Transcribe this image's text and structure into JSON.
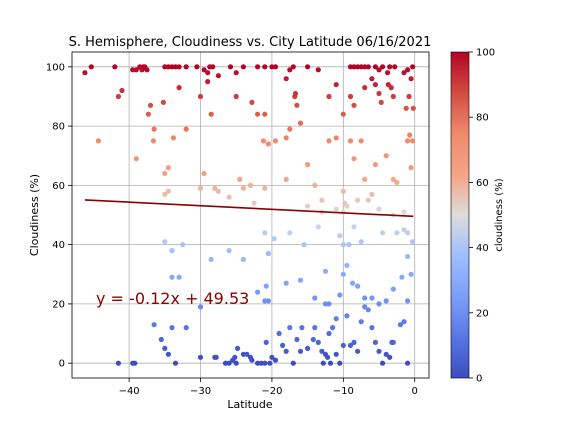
{
  "chart_data": {
    "type": "scatter",
    "title": "S. Hemisphere, Cloudiness vs. City Latitude  06/16/2021",
    "xlabel": "Latitude",
    "ylabel": "Cloudiness (%)",
    "xlim": [
      -48,
      2
    ],
    "ylim": [
      -5,
      105
    ],
    "xticks": [
      -40,
      -30,
      -20,
      -10,
      0
    ],
    "yticks": [
      0,
      20,
      40,
      60,
      80,
      100
    ],
    "grid": true,
    "colormap": "coolwarm",
    "colorbar": {
      "label": "cloudiness (%)",
      "range": [
        0,
        100
      ],
      "ticks": [
        0,
        20,
        40,
        60,
        80,
        100
      ]
    },
    "regression": {
      "slope": -0.12,
      "intercept": 49.53,
      "equation": "y = -0.12x + 49.53",
      "line_color": "#8b0000",
      "text_color": "#8b0000"
    },
    "points": [
      [
        -46.2,
        98
      ],
      [
        -45.3,
        100
      ],
      [
        -42,
        100
      ],
      [
        -41.5,
        90
      ],
      [
        -41,
        92
      ],
      [
        -39.5,
        99
      ],
      [
        -39,
        99
      ],
      [
        -38.5,
        100
      ],
      [
        -38.2,
        99
      ],
      [
        -38,
        100
      ],
      [
        -37.8,
        100
      ],
      [
        -37.5,
        99
      ],
      [
        -37,
        87
      ],
      [
        -37.3,
        84
      ],
      [
        -36.5,
        79
      ],
      [
        -36.6,
        75
      ],
      [
        -35,
        100
      ],
      [
        -34.5,
        100
      ],
      [
        -34,
        100
      ],
      [
        -33.5,
        100
      ],
      [
        -33,
        100
      ],
      [
        -32,
        100
      ],
      [
        -30.5,
        100
      ],
      [
        -29.5,
        99
      ],
      [
        -29,
        98
      ],
      [
        -28.7,
        100
      ],
      [
        -28.3,
        100
      ],
      [
        -27.5,
        97
      ],
      [
        -25.8,
        100
      ],
      [
        -25,
        98
      ],
      [
        -24,
        100
      ],
      [
        -22,
        100
      ],
      [
        -21,
        100
      ],
      [
        -20,
        100
      ],
      [
        -19.5,
        100
      ],
      [
        -18,
        96
      ],
      [
        -17.5,
        99
      ],
      [
        -17,
        100
      ],
      [
        -15,
        100
      ],
      [
        -13.5,
        99
      ],
      [
        -9,
        100
      ],
      [
        -8.5,
        100
      ],
      [
        -8,
        100
      ],
      [
        -7.5,
        100
      ],
      [
        -7,
        100
      ],
      [
        -6.5,
        100
      ],
      [
        -5.5,
        100
      ],
      [
        -5,
        99
      ],
      [
        -4.5,
        100
      ],
      [
        -3.8,
        98
      ],
      [
        -3.5,
        100
      ],
      [
        -2.8,
        100
      ],
      [
        -1.5,
        98
      ],
      [
        -1,
        99
      ],
      [
        -0.5,
        96
      ],
      [
        -0.3,
        100
      ],
      [
        -35.2,
        88
      ],
      [
        -33,
        93
      ],
      [
        -30,
        90
      ],
      [
        -29,
        95
      ],
      [
        -28.5,
        84
      ],
      [
        -25,
        90
      ],
      [
        -22.8,
        88
      ],
      [
        -22,
        84
      ],
      [
        -21,
        84
      ],
      [
        -16.5,
        87
      ],
      [
        -16.8,
        90
      ],
      [
        -16.7,
        91
      ],
      [
        -12,
        90
      ],
      [
        -11,
        94
      ],
      [
        -10,
        84
      ],
      [
        -9,
        90
      ],
      [
        -8.5,
        87
      ],
      [
        -7,
        93
      ],
      [
        -6,
        96
      ],
      [
        -5.5,
        94
      ],
      [
        -5,
        91
      ],
      [
        -4.7,
        88
      ],
      [
        -3.7,
        94
      ],
      [
        -3.3,
        93
      ],
      [
        -3,
        90
      ],
      [
        -1.2,
        86
      ],
      [
        -0.8,
        90
      ],
      [
        -0.2,
        86
      ],
      [
        -44.3,
        75
      ],
      [
        -39,
        69
      ],
      [
        -35,
        64
      ],
      [
        -34.5,
        66
      ],
      [
        -33.8,
        76
      ],
      [
        -32,
        79
      ],
      [
        -29.5,
        64
      ],
      [
        -28,
        59
      ],
      [
        -27.5,
        58
      ],
      [
        -24.5,
        62
      ],
      [
        -23,
        60
      ],
      [
        -21.2,
        75
      ],
      [
        -20.5,
        74
      ],
      [
        -19.5,
        75
      ],
      [
        -18,
        76
      ],
      [
        -17.5,
        79
      ],
      [
        -16,
        81
      ],
      [
        -15,
        67
      ],
      [
        -14,
        60
      ],
      [
        -13,
        55
      ],
      [
        -12,
        75
      ],
      [
        -11,
        76
      ],
      [
        -10,
        58
      ],
      [
        -9.8,
        54
      ],
      [
        -9,
        75
      ],
      [
        -8.5,
        69
      ],
      [
        -7.5,
        75
      ],
      [
        -7,
        62
      ],
      [
        -6,
        57
      ],
      [
        -5.5,
        67
      ],
      [
        -4,
        70
      ],
      [
        -3,
        62
      ],
      [
        -2.5,
        61
      ],
      [
        -1.5,
        51
      ],
      [
        -1,
        75
      ],
      [
        -0.7,
        77
      ],
      [
        -0.5,
        66
      ],
      [
        -0.3,
        75
      ],
      [
        -35,
        57
      ],
      [
        -34.5,
        58
      ],
      [
        -30,
        59
      ],
      [
        -26,
        56
      ],
      [
        -24,
        59
      ],
      [
        -22.5,
        54
      ],
      [
        -21,
        59
      ],
      [
        -18,
        62
      ],
      [
        -15,
        53
      ],
      [
        -13,
        51
      ],
      [
        -11,
        52
      ],
      [
        -10,
        51
      ],
      [
        -9.5,
        53
      ],
      [
        -8,
        55
      ],
      [
        -6.5,
        55
      ],
      [
        -5,
        52
      ],
      [
        -3,
        50
      ],
      [
        -1,
        44
      ],
      [
        -35,
        41
      ],
      [
        -34,
        38
      ],
      [
        -32.5,
        40
      ],
      [
        -28.5,
        35
      ],
      [
        -26,
        38
      ],
      [
        -21,
        44
      ],
      [
        -20.5,
        37
      ],
      [
        -19.7,
        42
      ],
      [
        -17.5,
        44
      ],
      [
        -15.5,
        40
      ],
      [
        -13.5,
        46
      ],
      [
        -10.5,
        43
      ],
      [
        -10,
        40
      ],
      [
        -9.2,
        40
      ],
      [
        -8.5,
        46
      ],
      [
        -7.5,
        41
      ],
      [
        -4.5,
        44
      ],
      [
        -2.5,
        44
      ],
      [
        -1.5,
        45
      ],
      [
        -1,
        36
      ],
      [
        -0.5,
        30
      ],
      [
        -0.3,
        41
      ],
      [
        -34,
        29
      ],
      [
        -33,
        29
      ],
      [
        -30,
        19
      ],
      [
        -24,
        35
      ],
      [
        -22,
        24
      ],
      [
        -21,
        21
      ],
      [
        -20.8,
        26
      ],
      [
        -20.5,
        21
      ],
      [
        -18,
        27
      ],
      [
        -16,
        28
      ],
      [
        -14,
        22
      ],
      [
        -12.5,
        31
      ],
      [
        -12.5,
        20
      ],
      [
        -12,
        20
      ],
      [
        -11,
        15
      ],
      [
        -10.5,
        23
      ],
      [
        -10,
        30
      ],
      [
        -9.5,
        33
      ],
      [
        -8.7,
        27
      ],
      [
        -8,
        26
      ],
      [
        -7,
        19
      ],
      [
        -6,
        22
      ],
      [
        -5,
        20
      ],
      [
        -4,
        21
      ],
      [
        -3,
        25
      ],
      [
        -1.8,
        29
      ],
      [
        -1,
        21
      ],
      [
        -41.5,
        0
      ],
      [
        -39.5,
        0
      ],
      [
        -39.2,
        0
      ],
      [
        -36.5,
        13
      ],
      [
        -35.5,
        8
      ],
      [
        -35,
        5
      ],
      [
        -34.5,
        3
      ],
      [
        -34,
        12
      ],
      [
        -33.5,
        0
      ],
      [
        -32,
        12
      ],
      [
        -30,
        2
      ],
      [
        -28,
        2
      ],
      [
        -27.8,
        2
      ],
      [
        -26.5,
        0
      ],
      [
        -26,
        0
      ],
      [
        -25.5,
        1
      ],
      [
        -25.2,
        2
      ],
      [
        -25,
        0
      ],
      [
        -24.8,
        5
      ],
      [
        -24,
        3
      ],
      [
        -23.5,
        3
      ],
      [
        -23,
        2
      ],
      [
        -22.8,
        1
      ],
      [
        -22,
        0
      ],
      [
        -21.5,
        0
      ],
      [
        -21,
        0
      ],
      [
        -20.8,
        7
      ],
      [
        -20.3,
        0
      ],
      [
        -20,
        2
      ],
      [
        -19.5,
        1
      ],
      [
        -19,
        10
      ],
      [
        -18.5,
        6
      ],
      [
        -18,
        4
      ],
      [
        -17.5,
        12
      ],
      [
        -17,
        0
      ],
      [
        -16.5,
        8
      ],
      [
        -16,
        4
      ],
      [
        -15.8,
        12
      ],
      [
        -15,
        5
      ],
      [
        -14.2,
        8
      ],
      [
        -14,
        12
      ],
      [
        -13.5,
        7
      ],
      [
        -13,
        4
      ],
      [
        -12.8,
        0
      ],
      [
        -12.5,
        3
      ],
      [
        -12.2,
        2
      ],
      [
        -12,
        10
      ],
      [
        -11.8,
        0
      ],
      [
        -11.5,
        12
      ],
      [
        -11,
        3
      ],
      [
        -10.5,
        0
      ],
      [
        -10,
        6
      ],
      [
        -9.5,
        16
      ],
      [
        -9,
        6
      ],
      [
        -8.5,
        7
      ],
      [
        -8,
        4
      ],
      [
        -7.5,
        14
      ],
      [
        -7,
        22
      ],
      [
        -6.5,
        18
      ],
      [
        -6,
        12
      ],
      [
        -5.5,
        7
      ],
      [
        -5,
        4
      ],
      [
        -4.5,
        0
      ],
      [
        -4,
        3
      ],
      [
        -3.5,
        2
      ],
      [
        -3.2,
        7
      ],
      [
        -3,
        7
      ],
      [
        -2,
        13
      ],
      [
        -1.5,
        14
      ],
      [
        -1,
        0
      ]
    ]
  }
}
